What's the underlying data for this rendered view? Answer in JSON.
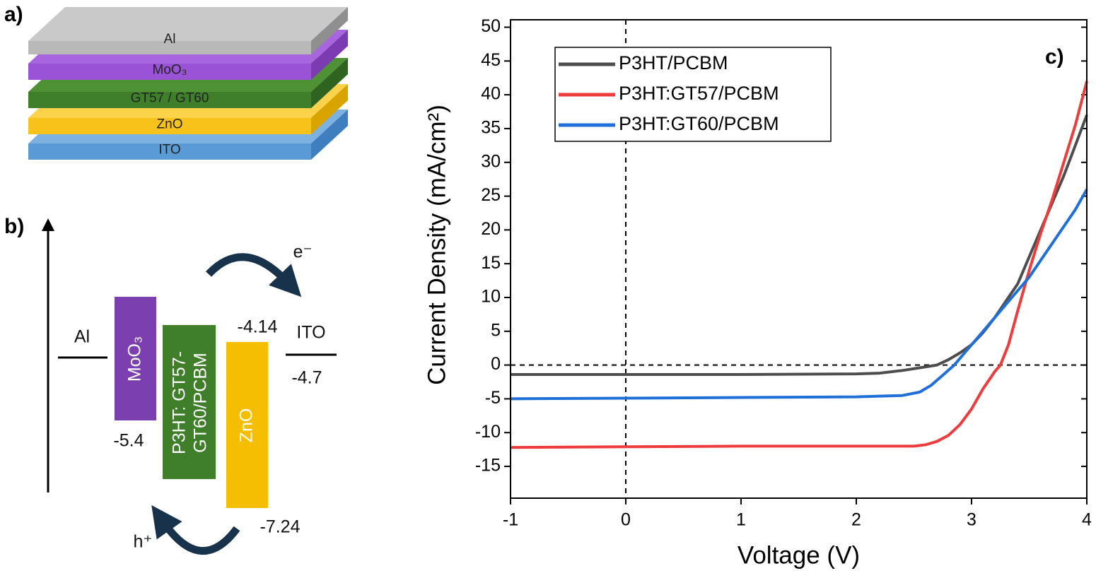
{
  "panel_a": {
    "label": "a)",
    "layers": [
      "Al",
      "MoO₃",
      "GT57 / GT60",
      "ZnO",
      "ITO"
    ]
  },
  "panel_b": {
    "label": "b)",
    "electrode_left": "Al",
    "electrode_right": "ITO",
    "moo3": "MoO₃",
    "active": [
      "P3HT: GT57-",
      "GT60/PCBM"
    ],
    "zno": "ZnO",
    "levels": {
      "moo3": "-5.4",
      "zno_top": "-4.14",
      "ito": "-4.7",
      "zno_bottom": "-7.24"
    },
    "electron": "e⁻",
    "hole": "h⁺"
  },
  "chart_data": {
    "type": "line",
    "panel_label": "c)",
    "x_label": "Voltage (V)",
    "y_label": "Current Density (mA/cm²)",
    "xlim": [
      -1,
      4
    ],
    "ylim": [
      -19.7,
      51.1
    ],
    "xticks": [
      -1,
      0,
      1,
      2,
      3,
      4
    ],
    "yticks": [
      -15,
      -10,
      -5,
      0,
      5,
      10,
      15,
      20,
      25,
      30,
      35,
      40,
      45,
      50
    ],
    "reference_lines": {
      "x": [
        0
      ],
      "y": [
        0
      ]
    },
    "legend": "upper left",
    "series": [
      {
        "name": "P3HT/PCBM",
        "color": "#4d4d4d",
        "x": [
          -1,
          0,
          1,
          2,
          2.2,
          2.4,
          2.55,
          2.7,
          2.8,
          2.9,
          3.0,
          3.1,
          3.2,
          3.3,
          3.4,
          3.5,
          3.6,
          3.7,
          3.8,
          3.9,
          4.0
        ],
        "values": [
          -1.4,
          -1.4,
          -1.4,
          -1.3,
          -1.2,
          -0.8,
          -0.4,
          0,
          0.8,
          1.8,
          3,
          4.8,
          7,
          9.5,
          12,
          16,
          20,
          24,
          28,
          32.5,
          37
        ]
      },
      {
        "name": "P3HT:GT57/PCBM",
        "color": "#ee3b3b",
        "x": [
          -1,
          0,
          1,
          2,
          2.5,
          2.6,
          2.7,
          2.8,
          2.9,
          3.0,
          3.1,
          3.2,
          3.25,
          3.32,
          3.4,
          3.5,
          3.6,
          3.7,
          3.8,
          3.9,
          4.0
        ],
        "values": [
          -12.2,
          -12.1,
          -12,
          -12,
          -12,
          -11.8,
          -11.3,
          -10.4,
          -8.8,
          -6.5,
          -3.5,
          -1,
          0,
          3,
          8,
          14,
          19.5,
          24.5,
          30,
          35.5,
          42
        ]
      },
      {
        "name": "P3HT:GT60/PCBM",
        "color": "#1f6fd9",
        "x": [
          -1,
          0,
          1,
          2,
          2.2,
          2.4,
          2.55,
          2.65,
          2.75,
          2.85,
          2.95,
          3.05,
          3.2,
          3.35,
          3.5,
          3.6,
          3.7,
          3.8,
          3.9,
          4.0
        ],
        "values": [
          -5,
          -4.9,
          -4.8,
          -4.7,
          -4.6,
          -4.5,
          -4,
          -3,
          -1.5,
          0,
          2,
          4,
          7,
          10,
          13,
          15.5,
          18,
          20.5,
          23,
          26
        ]
      }
    ]
  }
}
